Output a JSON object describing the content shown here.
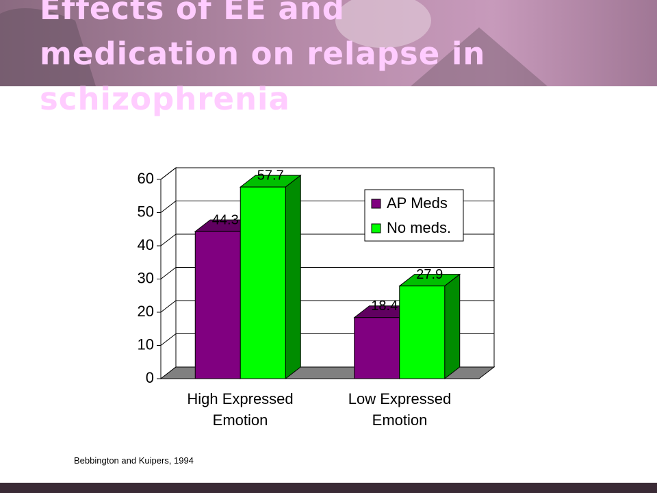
{
  "chart_data": {
    "type": "bar3d",
    "title": "Effects of EE and medication on relapse in schizophrenia",
    "categories": [
      "High Expressed Emotion",
      "Low Expressed Emotion"
    ],
    "series": [
      {
        "name": "AP Meds",
        "color": "#800080",
        "values": [
          44.3,
          18.4
        ]
      },
      {
        "name": "No meds.",
        "color": "#00ff00",
        "values": [
          57.7,
          27.9
        ]
      }
    ],
    "ylim": [
      0,
      60
    ],
    "yticks": [
      0,
      10,
      20,
      30,
      40,
      50,
      60
    ],
    "grid": true,
    "legend": "top-right",
    "source": "Bebbington and Kuipers, 1994"
  }
}
